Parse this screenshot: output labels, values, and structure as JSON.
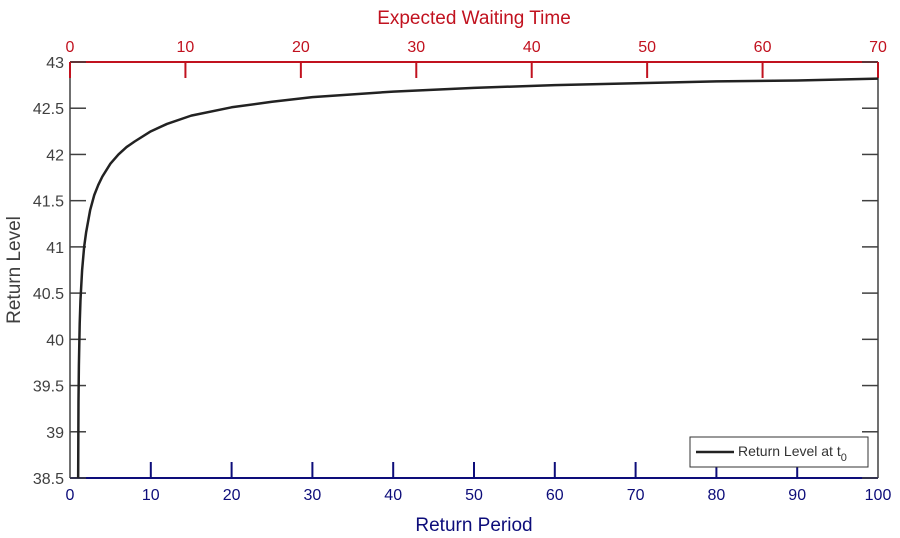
{
  "chart_data": {
    "type": "line",
    "xlabel": "Return Period",
    "ylabel": "Return Level",
    "top_xlabel": "Expected Waiting Time",
    "xlim": [
      0,
      100
    ],
    "ylim": [
      38.5,
      43
    ],
    "top_xlim": [
      0,
      70
    ],
    "x_ticks": [
      0,
      10,
      20,
      30,
      40,
      50,
      60,
      70,
      80,
      90,
      100
    ],
    "y_ticks": [
      38.5,
      39,
      39.5,
      40,
      40.5,
      41,
      41.5,
      42,
      42.5,
      43
    ],
    "y_tick_labels": [
      "38.5",
      "39",
      "39.5",
      "40",
      "40.5",
      "41",
      "41.5",
      "42",
      "42.5",
      "43"
    ],
    "top_x_ticks": [
      0,
      10,
      20,
      30,
      40,
      50,
      60,
      70
    ],
    "grid": false,
    "legend": {
      "position": "bottom-right",
      "entries": [
        {
          "label": "Return Level at t",
          "subscript": "0"
        }
      ]
    },
    "series": [
      {
        "name": "Return Level at t0",
        "color": "#222222",
        "x": [
          1.01,
          1.05,
          1.1,
          1.2,
          1.3,
          1.5,
          1.75,
          2,
          2.5,
          3,
          3.5,
          4,
          5,
          6,
          7,
          8,
          10,
          12,
          15,
          20,
          25,
          30,
          40,
          50,
          60,
          70,
          80,
          90,
          100
        ],
        "y": [
          38.5,
          39.32,
          39.72,
          40.17,
          40.43,
          40.75,
          41.0,
          41.16,
          41.4,
          41.56,
          41.67,
          41.76,
          41.9,
          42.0,
          42.08,
          42.14,
          42.25,
          42.33,
          42.42,
          42.51,
          42.57,
          42.62,
          42.68,
          42.72,
          42.75,
          42.77,
          42.79,
          42.8,
          42.82
        ]
      }
    ],
    "colors": {
      "bottom_axis": "#0d0d7a",
      "top_axis": "#c1121f",
      "left_axis": "#404040",
      "line": "#222222"
    }
  }
}
